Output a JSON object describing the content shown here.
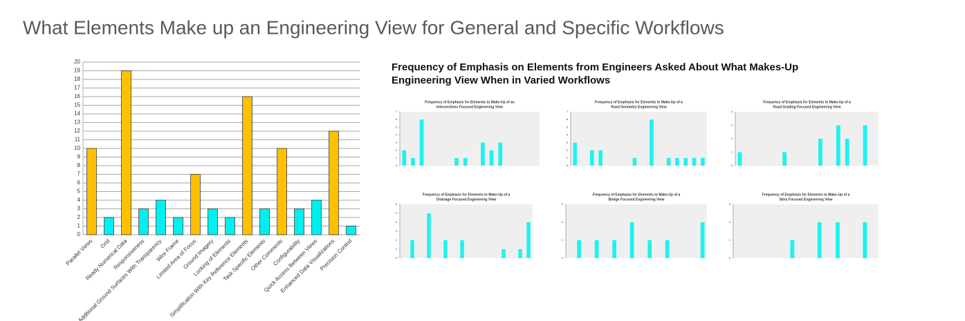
{
  "header": {
    "title": "What Elements Make up an Engineering View for General and Specific Workflows"
  },
  "panel_title": [
    "Frequency of Emphasis on Elements from Engineers Asked About What Makes-Up",
    "Engineering View When in Varied Workflows"
  ],
  "chart_data": [
    {
      "type": "bar",
      "categories": [
        "Parallel Views",
        "Grid",
        "Ready Numerical Data",
        "Responsiveness",
        "Additional Ground Surfaces With Transparency",
        "Wire Frame",
        "Limited Area of Focus",
        "Ground Imagery",
        "Locking of Elements",
        "Simplification With Key Reference Elements",
        "Task Specific Elements",
        "Other Comments",
        "Configurability",
        "Quick Access Between Views",
        "Enhanced Data Visualizations",
        "Precision Control"
      ],
      "values": [
        10,
        2,
        19,
        3,
        4,
        2,
        7,
        3,
        2,
        16,
        3,
        10,
        3,
        4,
        12,
        1
      ],
      "colors": [
        "#ffc000",
        "#00f0f0",
        "#ffc000",
        "#00f0f0",
        "#00f0f0",
        "#00f0f0",
        "#ffc000",
        "#00f0f0",
        "#00f0f0",
        "#ffc000",
        "#00f0f0",
        "#ffc000",
        "#00f0f0",
        "#00f0f0",
        "#ffc000",
        "#00f0f0"
      ],
      "ylim": [
        0,
        20
      ],
      "yticks": [
        0,
        1,
        2,
        3,
        4,
        5,
        6,
        7,
        8,
        9,
        10,
        11,
        12,
        13,
        14,
        15,
        16,
        17,
        18,
        19,
        20
      ],
      "grid": true
    },
    {
      "type": "bar",
      "title": [
        "Frequency of Emphasis for Elements to Make-Up of an",
        "Intersections Focused Engineering View"
      ],
      "categories": [
        null,
        null,
        null,
        null,
        null,
        null,
        null,
        null,
        null,
        null,
        null,
        null,
        null,
        null,
        null,
        null
      ],
      "values": [
        2,
        1,
        6,
        0,
        0,
        0,
        1,
        1,
        0,
        3,
        2,
        3,
        0,
        0,
        0,
        0
      ],
      "color": "#1ef2f0",
      "ylim": [
        0,
        7
      ],
      "yticks": [
        0,
        1,
        2,
        3,
        4,
        5,
        6,
        7
      ],
      "grid": false
    },
    {
      "type": "bar",
      "title": [
        "Frequency of Emphasis for Elements to Make-Up of a",
        "Road Geometry Engineering View"
      ],
      "categories": [
        null,
        null,
        null,
        null,
        null,
        null,
        null,
        null,
        null,
        null,
        null,
        null,
        null,
        null,
        null,
        null
      ],
      "values": [
        3,
        0,
        2,
        2,
        0,
        0,
        0,
        1,
        0,
        6,
        0,
        1,
        1,
        1,
        1,
        1
      ],
      "color": "#1ef2f0",
      "ylim": [
        0,
        7
      ],
      "yticks": [
        0,
        1,
        2,
        3,
        4,
        5,
        6,
        7
      ],
      "grid": false
    },
    {
      "type": "bar",
      "title": [
        "Frequency of Emphasis for Elements to Make-Up of a",
        "Road Grading Focused Engineering View"
      ],
      "categories": [
        null,
        null,
        null,
        null,
        null,
        null,
        null,
        null,
        null,
        null,
        null,
        null,
        null,
        null,
        null,
        null
      ],
      "values": [
        1,
        0,
        0,
        0,
        0,
        1,
        0,
        0,
        0,
        2,
        0,
        3,
        2,
        0,
        3,
        0
      ],
      "color": "#1ef2f0",
      "ylim": [
        0,
        4
      ],
      "yticks": [
        0,
        1,
        2,
        3,
        4
      ],
      "grid": false
    },
    {
      "type": "bar",
      "title": [
        "Frequency of Emphasis for Elements to Make-Up of a",
        "Drainage Focused Engineering View"
      ],
      "categories": [
        null,
        null,
        null,
        null,
        null,
        null,
        null,
        null,
        null,
        null,
        null,
        null,
        null,
        null,
        null,
        null
      ],
      "values": [
        0,
        2,
        0,
        5,
        0,
        2,
        0,
        2,
        0,
        0,
        0,
        0,
        1,
        0,
        1,
        4
      ],
      "color": "#1ef2f0",
      "ylim": [
        0,
        6
      ],
      "yticks": [
        0,
        1,
        2,
        3,
        4,
        5,
        6
      ],
      "grid": false
    },
    {
      "type": "bar",
      "title": [
        "Frequency of Emphasis for Elements to Make-Up of a",
        "Bridge Focused Engineering View"
      ],
      "categories": [
        null,
        null,
        null,
        null,
        null,
        null,
        null,
        null,
        null,
        null,
        null,
        null,
        null,
        null,
        null,
        null
      ],
      "values": [
        0,
        1,
        0,
        1,
        0,
        1,
        0,
        2,
        0,
        1,
        0,
        1,
        0,
        0,
        0,
        2
      ],
      "color": "#1ef2f0",
      "ylim": [
        0,
        3
      ],
      "yticks": [
        0,
        1,
        2,
        3
      ],
      "grid": false
    },
    {
      "type": "bar",
      "title": [
        "Frequency of Emphasis for Elements to Make-Up of a",
        "Sites Focused Engineering View"
      ],
      "categories": [
        null,
        null,
        null,
        null,
        null,
        null,
        null,
        null,
        null,
        null,
        null,
        null,
        null,
        null,
        null,
        null
      ],
      "values": [
        0,
        0,
        0,
        0,
        0,
        0,
        1,
        0,
        0,
        2,
        0,
        2,
        0,
        0,
        2,
        0
      ],
      "color": "#1ef2f0",
      "ylim": [
        0,
        3
      ],
      "yticks": [
        0,
        1,
        2,
        3
      ],
      "grid": false
    }
  ]
}
